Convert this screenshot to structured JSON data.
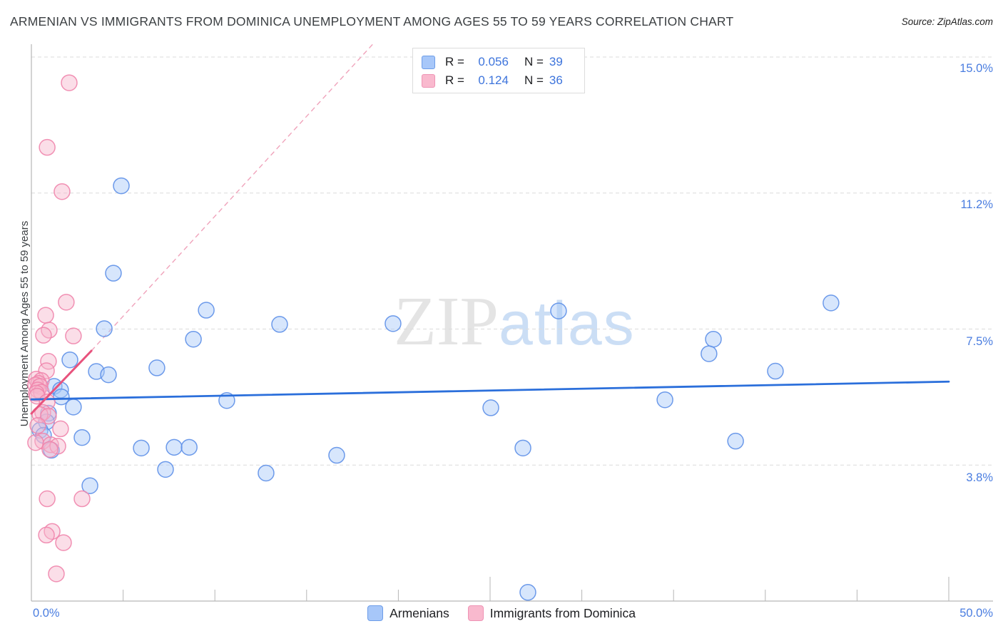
{
  "header": {
    "title": "ARMENIAN VS IMMIGRANTS FROM DOMINICA UNEMPLOYMENT AMONG AGES 55 TO 59 YEARS CORRELATION CHART",
    "source": "Source: ZipAtlas.com"
  },
  "watermark": {
    "zip": "ZIP",
    "atlas": "atlas"
  },
  "stats_legend": {
    "rows": [
      {
        "series": "Armenians",
        "r_label": "R =",
        "r_value": "0.056",
        "n_label": "N =",
        "n_value": "39"
      },
      {
        "series": "Immigrants from Dominica",
        "r_label": "R =",
        "r_value": "0.124",
        "n_label": "N =",
        "n_value": "36"
      }
    ]
  },
  "bottom_legend": {
    "items": [
      {
        "label": "Armenians",
        "color": "#a7c7f9"
      },
      {
        "label": "Immigrants from Dominica",
        "color": "#f9b9ce"
      }
    ]
  },
  "chart_data": {
    "type": "scatter",
    "title": "Armenian vs Immigrants from Dominica Unemployment Among Ages 55 to 59 years",
    "xlabel": "",
    "ylabel": "Unemployment Among Ages 55 to 59 years",
    "x_axis": {
      "min": 0,
      "max": 50,
      "unit": "%",
      "tick_labels": [
        "0.0%",
        "50.0%"
      ],
      "minor_tick_positions": [
        5,
        10,
        15,
        20,
        25,
        30,
        35,
        40,
        45,
        50
      ]
    },
    "y_axis": {
      "min": 0,
      "max": 15,
      "unit": "%",
      "gridline_values": [
        15.0,
        11.25,
        7.5,
        3.75
      ],
      "tick_labels": [
        "15.0%",
        "11.2%",
        "7.5%",
        "3.8%"
      ],
      "grid": true
    },
    "legend_position": "top-center",
    "series": [
      {
        "name": "Armenians",
        "R": 0.056,
        "N": 39,
        "fill": "#a7c7f9",
        "stroke": "#5e90e8",
        "points": [
          [
            4.9,
            11.45
          ],
          [
            4.47,
            9.04
          ],
          [
            9.53,
            8.02
          ],
          [
            13.53,
            7.63
          ],
          [
            19.71,
            7.65
          ],
          [
            28.73,
            8.0
          ],
          [
            43.58,
            8.22
          ],
          [
            3.97,
            7.51
          ],
          [
            8.83,
            7.22
          ],
          [
            37.17,
            7.22
          ],
          [
            36.93,
            6.82
          ],
          [
            40.55,
            6.34
          ],
          [
            6.84,
            6.43
          ],
          [
            2.1,
            6.65
          ],
          [
            3.54,
            6.33
          ],
          [
            4.2,
            6.24
          ],
          [
            10.65,
            5.53
          ],
          [
            25.04,
            5.33
          ],
          [
            34.53,
            5.55
          ],
          [
            26.79,
            4.22
          ],
          [
            38.38,
            4.41
          ],
          [
            5.99,
            4.22
          ],
          [
            7.78,
            4.24
          ],
          [
            8.6,
            4.24
          ],
          [
            7.31,
            3.63
          ],
          [
            12.79,
            3.53
          ],
          [
            16.64,
            4.02
          ],
          [
            3.19,
            3.18
          ],
          [
            27.06,
            0.24
          ],
          [
            1.24,
            5.92
          ],
          [
            1.59,
            5.82
          ],
          [
            1.63,
            5.63
          ],
          [
            2.29,
            5.35
          ],
          [
            0.93,
            5.18
          ],
          [
            0.82,
            4.94
          ],
          [
            0.47,
            4.71
          ],
          [
            0.66,
            4.57
          ],
          [
            2.76,
            4.51
          ],
          [
            1.09,
            4.16
          ]
        ]
      },
      {
        "name": "Immigrants from Dominica",
        "R": 0.124,
        "N": 36,
        "fill": "#f7b6cd",
        "stroke": "#f085ac",
        "points": [
          [
            2.06,
            14.29
          ],
          [
            0.86,
            12.51
          ],
          [
            1.67,
            11.29
          ],
          [
            1.9,
            8.24
          ],
          [
            0.78,
            7.88
          ],
          [
            0.97,
            7.47
          ],
          [
            0.66,
            7.33
          ],
          [
            2.29,
            7.31
          ],
          [
            0.93,
            6.61
          ],
          [
            0.82,
            6.35
          ],
          [
            0.27,
            6.12
          ],
          [
            0.54,
            6.08
          ],
          [
            0.39,
            6.0
          ],
          [
            0.23,
            5.96
          ],
          [
            0.47,
            5.92
          ],
          [
            0.35,
            5.82
          ],
          [
            0.54,
            5.76
          ],
          [
            0.27,
            5.73
          ],
          [
            0.31,
            5.65
          ],
          [
            0.86,
            5.49
          ],
          [
            0.62,
            5.2
          ],
          [
            0.47,
            5.14
          ],
          [
            0.93,
            5.1
          ],
          [
            0.35,
            4.84
          ],
          [
            1.59,
            4.75
          ],
          [
            0.62,
            4.41
          ],
          [
            0.23,
            4.37
          ],
          [
            1.05,
            4.31
          ],
          [
            1.44,
            4.27
          ],
          [
            1.01,
            4.18
          ],
          [
            0.86,
            2.82
          ],
          [
            2.76,
            2.82
          ],
          [
            1.13,
            1.92
          ],
          [
            0.82,
            1.82
          ],
          [
            1.75,
            1.61
          ],
          [
            1.36,
            0.75
          ]
        ]
      }
    ],
    "trend_lines": [
      {
        "series": "Armenians",
        "style": "solid",
        "color": "#2b6fdb",
        "width": 2.8,
        "from": [
          0,
          5.56
        ],
        "to": [
          50,
          6.05
        ]
      },
      {
        "series": "Immigrants from Dominica",
        "style": "solid",
        "color": "#e8537d",
        "width": 3,
        "from": [
          0,
          5.17
        ],
        "to": [
          3.27,
          6.9
        ]
      },
      {
        "series": "Immigrants from Dominica",
        "style": "dashed",
        "color": "#f0a3bb",
        "width": 1.4,
        "from": [
          3.27,
          6.9
        ],
        "to": [
          18.6,
          15.35
        ]
      }
    ],
    "colors": {
      "grid": "#dbdbdb",
      "axis": "#b6b6b6",
      "tick_label": "#4a7de0"
    }
  }
}
